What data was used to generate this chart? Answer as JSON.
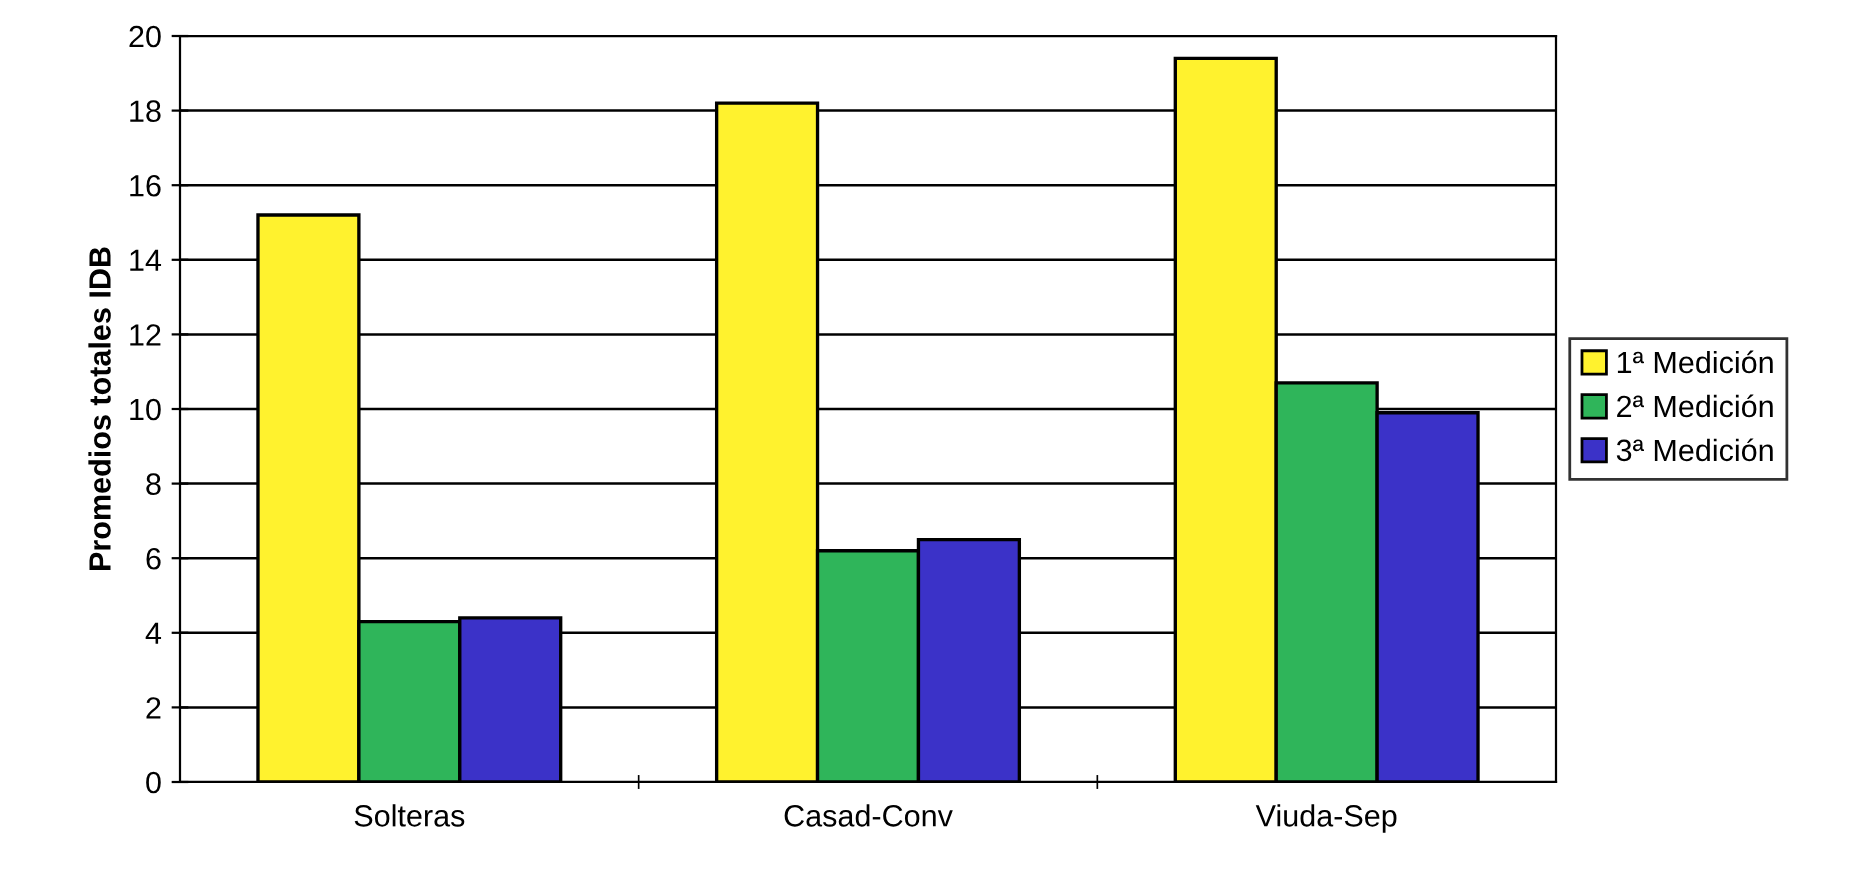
{
  "chart_data": {
    "type": "bar",
    "ylabel": "Promedios totales IDB",
    "categories": [
      "Solteras",
      "Casad-Conv",
      "Viuda-Sep"
    ],
    "series": [
      {
        "name": "1ª Medición",
        "color": "#fff22e",
        "values": [
          15.2,
          18.2,
          19.4
        ]
      },
      {
        "name": "2ª Medición",
        "color": "#2fb55a",
        "values": [
          4.3,
          6.2,
          10.7
        ]
      },
      {
        "name": "3ª Medición",
        "color": "#3b32c8",
        "values": [
          4.4,
          6.5,
          9.9
        ]
      }
    ],
    "ylim": [
      0,
      20
    ],
    "yticks": [
      0,
      2,
      4,
      6,
      8,
      10,
      12,
      14,
      16,
      18,
      20
    ],
    "grid": "y",
    "legend": "right"
  }
}
